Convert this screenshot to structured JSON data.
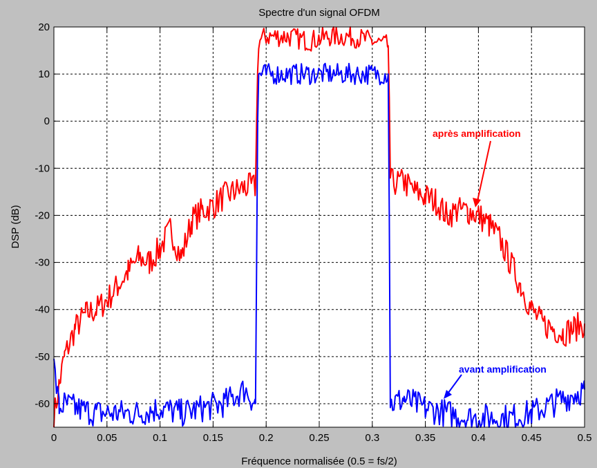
{
  "chart_data": {
    "type": "line",
    "title": "Spectre d'un signal OFDM",
    "xlabel": "Fréquence normalisée (0.5 = fs/2)",
    "ylabel": "DSP (dB)",
    "xlim": [
      0,
      0.5
    ],
    "ylim": [
      -65,
      20
    ],
    "grid": true,
    "x_ticks": [
      0,
      0.05,
      0.1,
      0.15,
      0.2,
      0.25,
      0.3,
      0.35,
      0.4,
      0.45,
      0.5
    ],
    "x_tick_labels": [
      "0",
      "0.05",
      "0.1",
      "0.15",
      "0.2",
      "0.25",
      "0.3",
      "0.35",
      "0.4",
      "0.45",
      "0.5"
    ],
    "y_ticks": [
      20,
      10,
      0,
      -10,
      -20,
      -30,
      -40,
      -50,
      -60
    ],
    "y_tick_labels": [
      "20",
      "10",
      "0",
      "-10",
      "-20",
      "-30",
      "-40",
      "-50",
      "-60"
    ],
    "series": [
      {
        "name": "après amplification",
        "color": "#ff0000",
        "x": [
          0,
          0.005,
          0.01,
          0.02,
          0.03,
          0.04,
          0.05,
          0.06,
          0.07,
          0.08,
          0.09,
          0.1,
          0.11,
          0.12,
          0.13,
          0.14,
          0.15,
          0.16,
          0.17,
          0.18,
          0.19,
          0.191,
          0.192,
          0.193,
          0.2,
          0.22,
          0.24,
          0.26,
          0.28,
          0.3,
          0.315,
          0.316,
          0.317,
          0.318,
          0.33,
          0.34,
          0.35,
          0.36,
          0.37,
          0.38,
          0.39,
          0.4,
          0.41,
          0.42,
          0.43,
          0.44,
          0.45,
          0.46,
          0.47,
          0.48,
          0.49,
          0.5
        ],
        "y": [
          -63,
          -56,
          -50,
          -44,
          -41,
          -40,
          -38,
          -35,
          -32,
          -29,
          -30,
          -27,
          -23,
          -29,
          -21,
          -19,
          -18,
          -16,
          -15,
          -14,
          -14,
          0,
          10,
          17,
          18,
          18,
          17,
          18,
          18,
          17,
          16,
          5,
          -12,
          -13,
          -13,
          -15,
          -16,
          -17,
          -20,
          -19,
          -19,
          -20,
          -22,
          -25,
          -30,
          -35,
          -40,
          -43,
          -44,
          -45,
          -44,
          -43
        ]
      },
      {
        "name": "avant amplification",
        "color": "#0000ff",
        "x": [
          0,
          0.005,
          0.01,
          0.02,
          0.04,
          0.06,
          0.08,
          0.1,
          0.12,
          0.14,
          0.16,
          0.18,
          0.19,
          0.191,
          0.192,
          0.193,
          0.2,
          0.22,
          0.24,
          0.26,
          0.28,
          0.3,
          0.315,
          0.316,
          0.317,
          0.318,
          0.33,
          0.35,
          0.37,
          0.39,
          0.41,
          0.43,
          0.45,
          0.47,
          0.49,
          0.5
        ],
        "y": [
          -52,
          -61,
          -60,
          -61,
          -62,
          -62,
          -62,
          -61,
          -62,
          -61,
          -60,
          -57,
          -60,
          -30,
          0,
          10,
          10,
          10,
          10,
          10,
          10,
          10,
          10,
          -20,
          -60,
          -60,
          -59,
          -61,
          -62,
          -63,
          -63,
          -63,
          -62,
          -60,
          -58,
          -57
        ]
      }
    ],
    "annotations": [
      {
        "text": "après amplification",
        "color": "#ff0000"
      },
      {
        "text": "avant amplification",
        "color": "#0000ff"
      }
    ]
  }
}
